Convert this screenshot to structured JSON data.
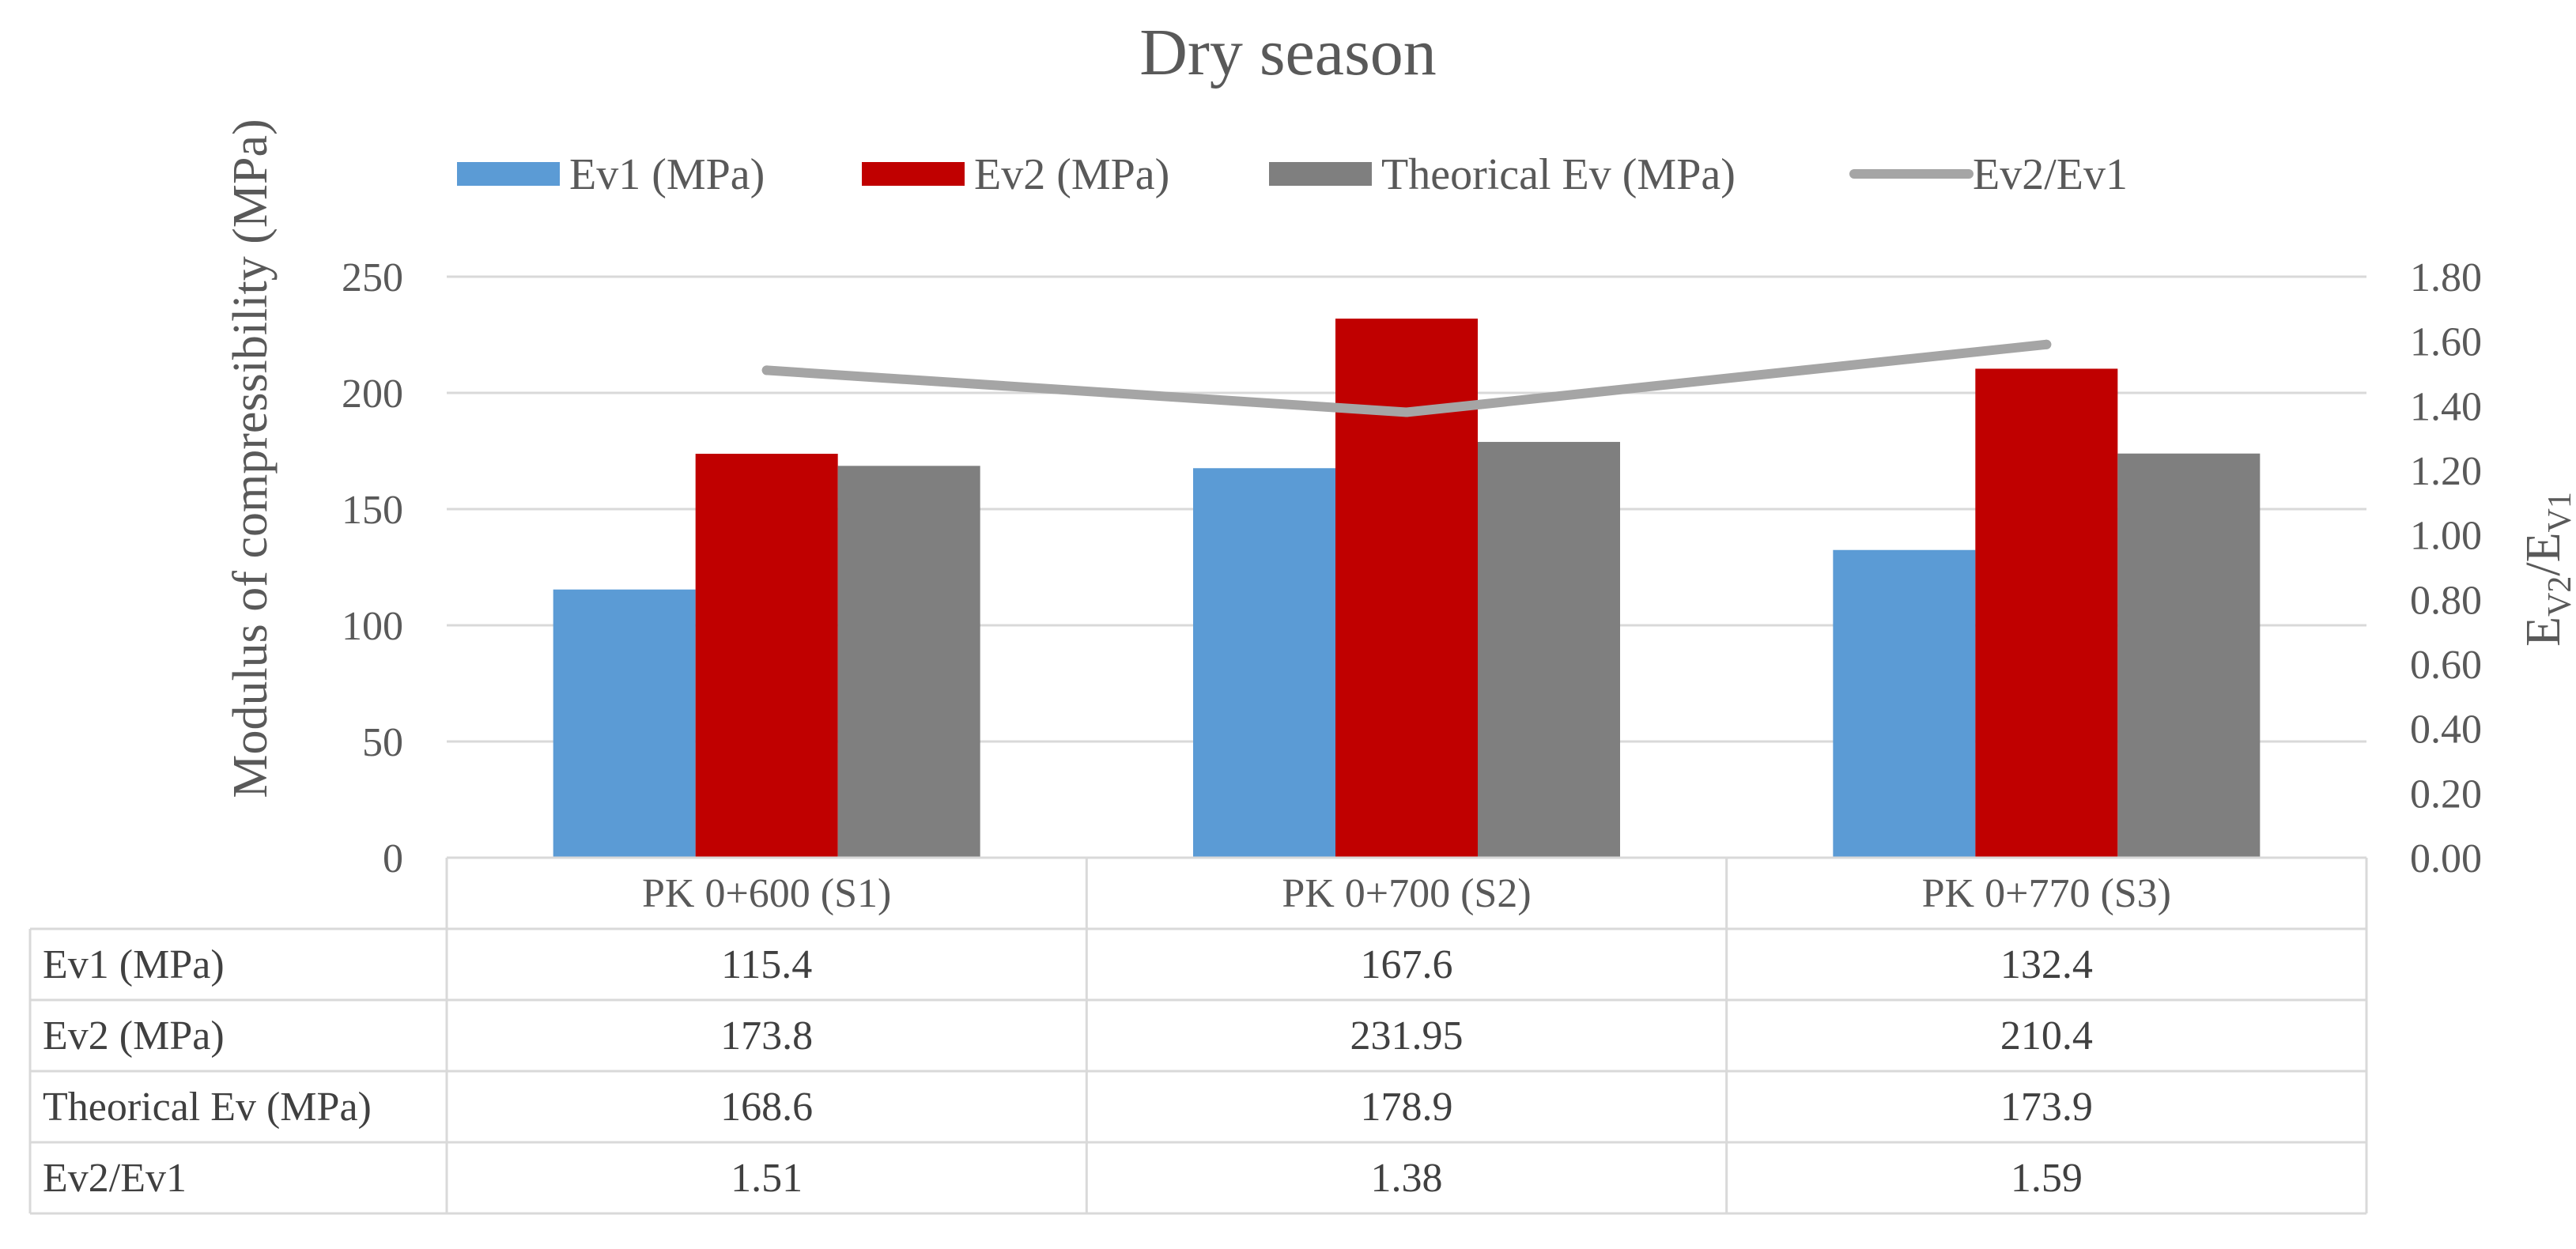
{
  "chart_data": {
    "type": "bar",
    "title": "Dry season",
    "ylabel": "Modulus of compressibility (MPa)",
    "y2label": {
      "main": "E",
      "sub1": "V2",
      "sep": "/E",
      "sub2": "V1"
    },
    "ylim": [
      0,
      250
    ],
    "y_ticks": [
      "0",
      "50",
      "100",
      "150",
      "200",
      "250"
    ],
    "y2lim": [
      0,
      1.8
    ],
    "y2_ticks": [
      "0.00",
      "0.20",
      "0.40",
      "0.60",
      "0.80",
      "1.00",
      "1.20",
      "1.40",
      "1.60",
      "1.80"
    ],
    "categories": [
      "PK 0+600 (S1)",
      "PK 0+700 (S2)",
      "PK 0+770 (S3)"
    ],
    "series": [
      {
        "name": "Ev1 (MPa)",
        "type": "bar",
        "color": "#5b9bd5",
        "values": [
          115.4,
          167.6,
          132.4
        ],
        "labels": [
          "115.4",
          "167.6",
          "132.4"
        ]
      },
      {
        "name": "Ev2 (MPa)",
        "type": "bar",
        "color": "#c00000",
        "values": [
          173.8,
          231.95,
          210.4
        ],
        "labels": [
          "173.8",
          "231.95",
          "210.4"
        ]
      },
      {
        "name": "Theorical Ev (MPa)",
        "type": "bar",
        "color": "#7f7f7f",
        "values": [
          168.6,
          178.9,
          173.9
        ],
        "labels": [
          "168.6",
          "178.9",
          "173.9"
        ]
      },
      {
        "name": "Ev2/Ev1",
        "type": "line",
        "axis": "secondary",
        "color": "#a5a5a5",
        "values": [
          1.51,
          1.38,
          1.59
        ],
        "labels": [
          "1.51",
          "1.38",
          "1.59"
        ]
      }
    ],
    "legend": "top",
    "data_table": true,
    "grid": true
  }
}
